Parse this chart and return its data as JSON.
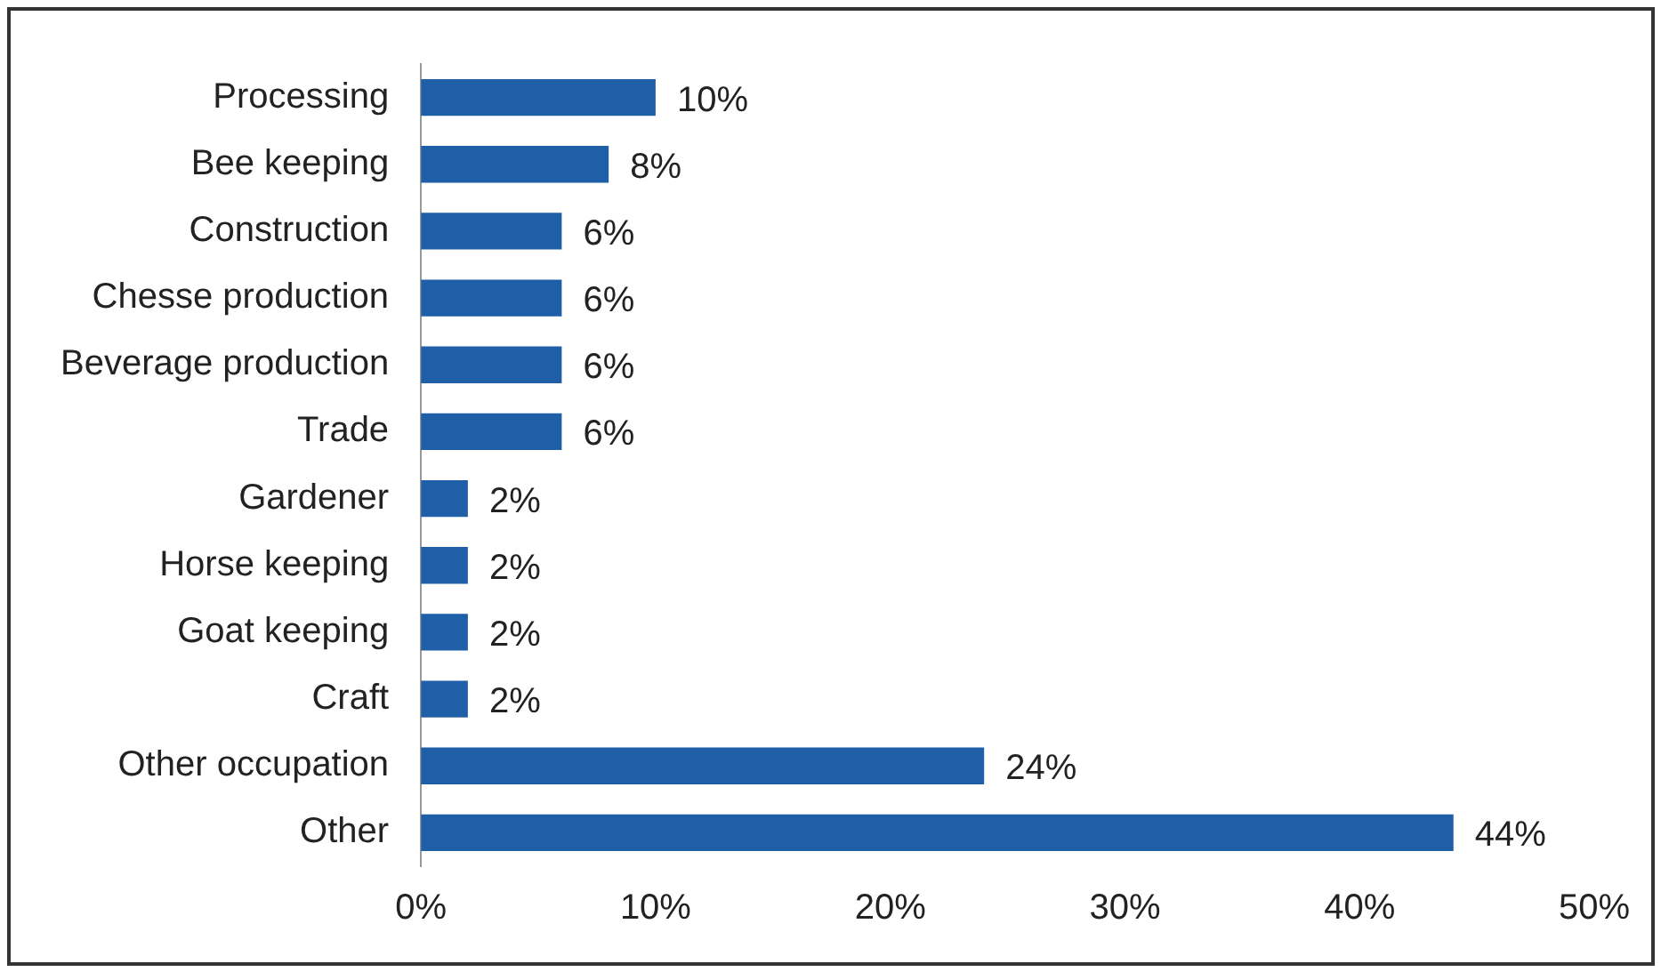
{
  "chart_data": {
    "type": "bar",
    "orientation": "horizontal",
    "categories": [
      "Processing",
      "Bee keeping",
      "Construction",
      "Chesse production",
      "Beverage production",
      "Trade",
      "Gardener",
      "Horse keeping",
      "Goat keeping",
      "Craft",
      "Other occupation",
      "Other"
    ],
    "values": [
      10,
      8,
      6,
      6,
      6,
      6,
      2,
      2,
      2,
      2,
      24,
      44
    ],
    "value_labels": [
      "10%",
      "8%",
      "6%",
      "6%",
      "6%",
      "6%",
      "2%",
      "2%",
      "2%",
      "2%",
      "24%",
      "44%"
    ],
    "color": "#1f5fa8",
    "xlim": [
      0,
      50
    ],
    "xticks": [
      {
        "value": 0,
        "label": "0%"
      },
      {
        "value": 10,
        "label": "10%"
      },
      {
        "value": 20,
        "label": "20%"
      },
      {
        "value": 30,
        "label": "30%"
      },
      {
        "value": 40,
        "label": "40%"
      },
      {
        "value": 50,
        "label": "50%"
      }
    ],
    "grid": false,
    "legend": false
  }
}
